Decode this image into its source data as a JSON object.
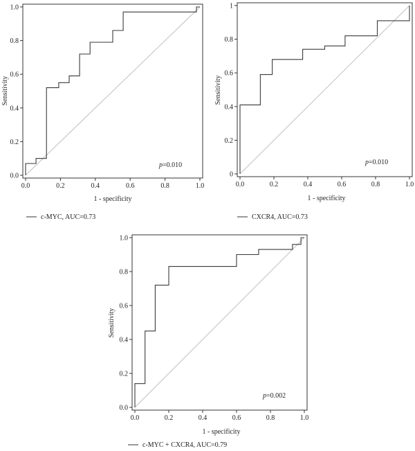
{
  "chart_data": [
    {
      "type": "line",
      "xlabel": "1 - specificity",
      "ylabel": "Sensitivity",
      "xlim": [
        0,
        1
      ],
      "ylim": [
        0,
        1
      ],
      "xticks": [
        "0.0",
        "0.2",
        "0.4",
        "0.6",
        "0.8",
        "1.0"
      ],
      "yticks": [
        "0.0",
        "0.2",
        "0.4",
        "0.6",
        "0.8",
        "1.0"
      ],
      "p_label": "p",
      "p_value": "=0.010",
      "legend": "c-MYC, AUC=0.73",
      "reference_line": [
        [
          0,
          0
        ],
        [
          1,
          1
        ]
      ],
      "series": [
        {
          "x": [
            0,
            0,
            0.06,
            0.06,
            0.12,
            0.12,
            0.19,
            0.19,
            0.25,
            0.25,
            0.31,
            0.31,
            0.37,
            0.37,
            0.5,
            0.5,
            0.56,
            0.56,
            0.98,
            0.98,
            1
          ],
          "y": [
            0,
            0.07,
            0.07,
            0.1,
            0.1,
            0.52,
            0.52,
            0.55,
            0.55,
            0.59,
            0.59,
            0.72,
            0.72,
            0.79,
            0.79,
            0.86,
            0.86,
            0.97,
            0.97,
            1,
            1
          ]
        }
      ]
    },
    {
      "type": "line",
      "xlabel": "1 - specificity",
      "ylabel": "Sensitivity",
      "xlim": [
        0,
        1
      ],
      "ylim": [
        0,
        1
      ],
      "xticks": [
        "0.0",
        "0.2",
        "0.4",
        "0.6",
        "0.8",
        "1.0"
      ],
      "yticks": [
        "0",
        "0.2",
        "0.4",
        "0.6",
        "0.8",
        "1"
      ],
      "p_label": "p",
      "p_value": "=0.010",
      "legend": "CXCR4, AUC=0.73",
      "reference_line": [
        [
          0,
          0
        ],
        [
          1,
          1
        ]
      ],
      "series": [
        {
          "x": [
            0,
            0,
            0.12,
            0.12,
            0.19,
            0.19,
            0.37,
            0.37,
            0.5,
            0.5,
            0.62,
            0.62,
            0.81,
            0.81,
            1,
            1
          ],
          "y": [
            0,
            0.41,
            0.41,
            0.59,
            0.59,
            0.68,
            0.68,
            0.74,
            0.74,
            0.76,
            0.76,
            0.82,
            0.82,
            0.91,
            0.91,
            1
          ]
        }
      ]
    },
    {
      "type": "line",
      "xlabel": "1 - specificity",
      "ylabel": "Sensitivity",
      "xlim": [
        0,
        1
      ],
      "ylim": [
        0,
        1
      ],
      "xticks": [
        "0.0",
        "0.2",
        "0.4",
        "0.6",
        "0.8",
        "1.0"
      ],
      "yticks": [
        "0.0",
        "0.2",
        "0.4",
        "0.6",
        "0.8",
        "1.0"
      ],
      "p_label": "p",
      "p_value": "=0.002",
      "legend": "c-MYC + CXCR4, AUC=0.79",
      "reference_line": [
        [
          0,
          0
        ],
        [
          1,
          1
        ]
      ],
      "series": [
        {
          "x": [
            0,
            0,
            0.06,
            0.06,
            0.12,
            0.12,
            0.2,
            0.2,
            0.6,
            0.6,
            0.73,
            0.73,
            0.93,
            0.93,
            0.98,
            0.98,
            1
          ],
          "y": [
            0,
            0.14,
            0.14,
            0.45,
            0.45,
            0.72,
            0.72,
            0.83,
            0.83,
            0.9,
            0.9,
            0.93,
            0.93,
            0.96,
            0.96,
            1,
            1
          ]
        }
      ]
    }
  ]
}
